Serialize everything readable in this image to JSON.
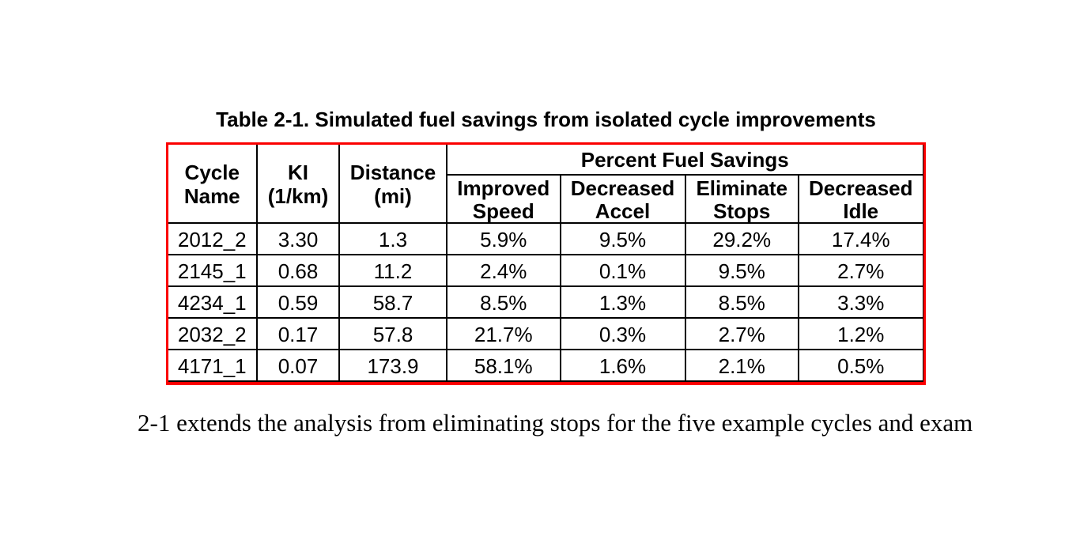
{
  "page": {
    "background_color": "#ffffff",
    "text_color": "#000000"
  },
  "caption": "Table 2-1. Simulated fuel savings from isolated cycle improvements",
  "table": {
    "highlight_border_color": "#fb0000",
    "grid_color": "#000000",
    "header": {
      "cycle_name": "Cycle\nName",
      "ki": "KI\n(1/km)",
      "distance": "Distance\n(mi)",
      "group": "Percent Fuel Savings",
      "sub": [
        "Improved\nSpeed",
        "Decreased\nAccel",
        "Eliminate\nStops",
        "Decreased\nIdle"
      ]
    },
    "rows": [
      [
        "2012_2",
        "3.30",
        "1.3",
        "5.9%",
        "9.5%",
        "29.2%",
        "17.4%"
      ],
      [
        "2145_1",
        "0.68",
        "11.2",
        "2.4%",
        "0.1%",
        "9.5%",
        "2.7%"
      ],
      [
        "4234_1",
        "0.59",
        "58.7",
        "8.5%",
        "1.3%",
        "8.5%",
        "3.3%"
      ],
      [
        "2032_2",
        "0.17",
        "57.8",
        "21.7%",
        "0.3%",
        "2.7%",
        "1.2%"
      ],
      [
        "4171_1",
        "0.07",
        "173.9",
        "58.1%",
        "1.6%",
        "2.1%",
        "0.5%"
      ]
    ]
  },
  "body_text": "2-1 extends the analysis from eliminating stops for the five example cycles and exam"
}
